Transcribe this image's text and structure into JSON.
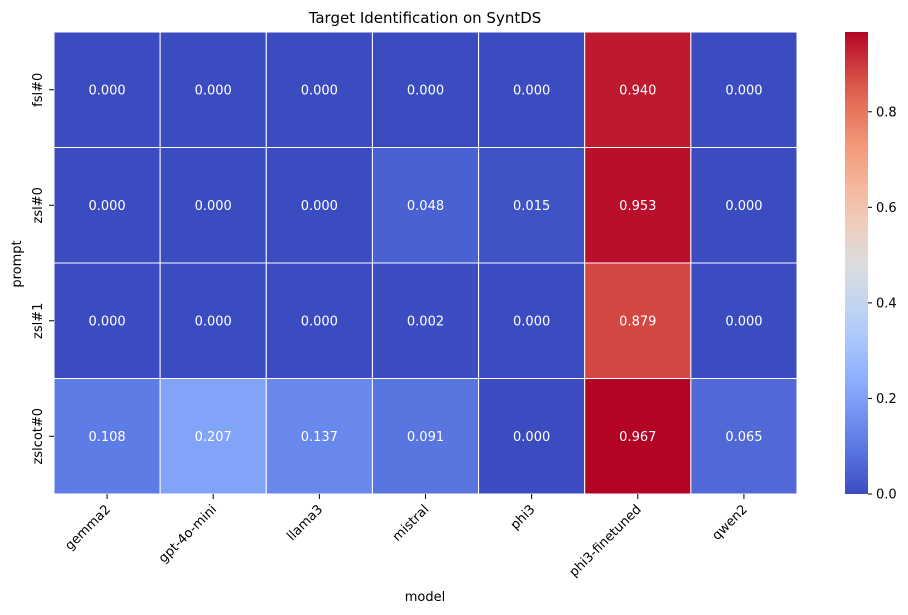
{
  "chart_data": {
    "type": "heatmap",
    "title": "Target Identification on SyntDS",
    "xlabel": "model",
    "ylabel": "prompt",
    "x_categories": [
      "gemma2",
      "gpt-4o-mini",
      "llama3",
      "mistral",
      "phi3",
      "phi3-finetuned",
      "qwen2"
    ],
    "y_categories": [
      "fsl#0",
      "zsl#0",
      "zsl#1",
      "zslcot#0"
    ],
    "values": [
      [
        0.0,
        0.0,
        0.0,
        0.0,
        0.0,
        0.94,
        0.0
      ],
      [
        0.0,
        0.0,
        0.0,
        0.048,
        0.015,
        0.953,
        0.0
      ],
      [
        0.0,
        0.0,
        0.0,
        0.002,
        0.0,
        0.879,
        0.0
      ],
      [
        0.108,
        0.207,
        0.137,
        0.091,
        0.0,
        0.967,
        0.065
      ]
    ],
    "value_format": "0.000",
    "colormap": "coolwarm",
    "colorbar": {
      "range": [
        0,
        0.967
      ],
      "ticks": [
        0.0,
        0.2,
        0.4,
        0.6,
        0.8
      ],
      "tick_labels": [
        "0.0",
        "0.2",
        "0.4",
        "0.6",
        "0.8"
      ]
    },
    "grid": "white cell borders"
  }
}
